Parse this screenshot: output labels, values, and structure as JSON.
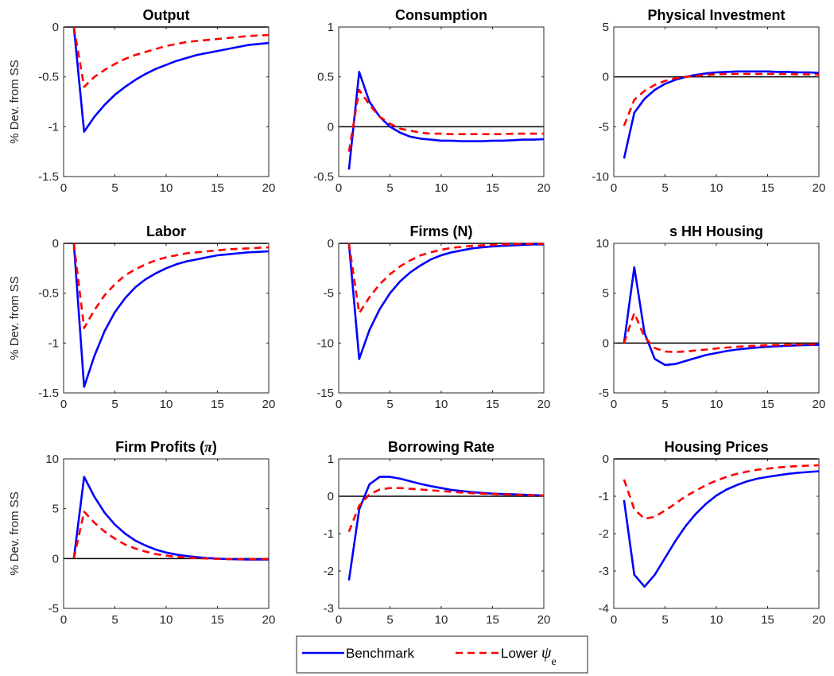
{
  "figure": {
    "ylabel": "% Dev. from SS",
    "legend": {
      "position": "bottom-center",
      "entries": [
        {
          "label": "Benchmark",
          "color": "#0000ff",
          "style": "solid"
        },
        {
          "label": "Lower",
          "symbol": "ψ",
          "subscript": "e",
          "color": "#ff0000",
          "style": "dashed"
        }
      ]
    },
    "colors": {
      "benchmark": "#0000ff",
      "lower": "#ff0000",
      "zero_line": "#000000",
      "axis": "#262626"
    }
  },
  "chart_data": [
    {
      "type": "line",
      "title": "Output",
      "xlim": [
        0,
        20
      ],
      "ylim": [
        -1.5,
        0
      ],
      "xticks": [
        0,
        5,
        10,
        15,
        20
      ],
      "yticks": [
        -1.5,
        -1,
        -0.5,
        0
      ],
      "ytick_labels": [
        "-1.5",
        "-1",
        "-0.5",
        "0"
      ],
      "x": [
        1,
        2,
        3,
        4,
        5,
        6,
        7,
        8,
        9,
        10,
        11,
        12,
        13,
        14,
        15,
        16,
        17,
        18,
        19,
        20
      ],
      "series": [
        {
          "name": "Benchmark",
          "values": [
            0,
            -1.05,
            -0.9,
            -0.78,
            -0.68,
            -0.6,
            -0.53,
            -0.47,
            -0.42,
            -0.38,
            -0.34,
            -0.31,
            -0.28,
            -0.26,
            -0.24,
            -0.22,
            -0.2,
            -0.18,
            -0.17,
            -0.16
          ]
        },
        {
          "name": "Lower ψe",
          "values": [
            0,
            -0.6,
            -0.5,
            -0.43,
            -0.37,
            -0.32,
            -0.28,
            -0.25,
            -0.22,
            -0.19,
            -0.17,
            -0.15,
            -0.14,
            -0.13,
            -0.12,
            -0.11,
            -0.1,
            -0.09,
            -0.085,
            -0.08
          ]
        }
      ]
    },
    {
      "type": "line",
      "title": "Consumption",
      "xlim": [
        0,
        20
      ],
      "ylim": [
        -0.5,
        1
      ],
      "xticks": [
        0,
        5,
        10,
        15,
        20
      ],
      "yticks": [
        -0.5,
        0,
        0.5,
        1
      ],
      "ytick_labels": [
        "-0.5",
        "0",
        "0.5",
        "1"
      ],
      "x": [
        1,
        2,
        3,
        4,
        5,
        6,
        7,
        8,
        9,
        10,
        11,
        12,
        13,
        14,
        15,
        16,
        17,
        18,
        19,
        20
      ],
      "series": [
        {
          "name": "Benchmark",
          "values": [
            -0.43,
            0.55,
            0.25,
            0.1,
            0.0,
            -0.06,
            -0.1,
            -0.12,
            -0.13,
            -0.14,
            -0.14,
            -0.145,
            -0.145,
            -0.145,
            -0.14,
            -0.14,
            -0.135,
            -0.13,
            -0.13,
            -0.125
          ]
        },
        {
          "name": "Lower ψe",
          "values": [
            -0.25,
            0.37,
            0.22,
            0.1,
            0.03,
            -0.02,
            -0.04,
            -0.06,
            -0.07,
            -0.07,
            -0.075,
            -0.075,
            -0.075,
            -0.075,
            -0.075,
            -0.075,
            -0.07,
            -0.07,
            -0.07,
            -0.07
          ]
        }
      ]
    },
    {
      "type": "line",
      "title": "Physical Investment",
      "xlim": [
        0,
        20
      ],
      "ylim": [
        -10,
        5
      ],
      "xticks": [
        0,
        5,
        10,
        15,
        20
      ],
      "yticks": [
        -10,
        -5,
        0,
        5
      ],
      "ytick_labels": [
        "-10",
        "-5",
        "0",
        "5"
      ],
      "x": [
        1,
        2,
        3,
        4,
        5,
        6,
        7,
        8,
        9,
        10,
        11,
        12,
        13,
        14,
        15,
        16,
        17,
        18,
        19,
        20
      ],
      "series": [
        {
          "name": "Benchmark",
          "values": [
            -8.2,
            -3.6,
            -2.2,
            -1.3,
            -0.7,
            -0.3,
            0.0,
            0.2,
            0.35,
            0.45,
            0.5,
            0.55,
            0.55,
            0.55,
            0.55,
            0.5,
            0.5,
            0.45,
            0.45,
            0.4
          ]
        },
        {
          "name": "Lower ψe",
          "values": [
            -4.9,
            -2.3,
            -1.4,
            -0.8,
            -0.4,
            -0.15,
            0.0,
            0.1,
            0.2,
            0.25,
            0.3,
            0.3,
            0.3,
            0.3,
            0.3,
            0.3,
            0.28,
            0.26,
            0.25,
            0.24
          ]
        }
      ]
    },
    {
      "type": "line",
      "title": "Labor",
      "xlim": [
        0,
        20
      ],
      "ylim": [
        -1.5,
        0
      ],
      "xticks": [
        0,
        5,
        10,
        15,
        20
      ],
      "yticks": [
        -1.5,
        -1,
        -0.5,
        0
      ],
      "ytick_labels": [
        "-1.5",
        "-1",
        "-0.5",
        "0"
      ],
      "x": [
        1,
        2,
        3,
        4,
        5,
        6,
        7,
        8,
        9,
        10,
        11,
        12,
        13,
        14,
        15,
        16,
        17,
        18,
        19,
        20
      ],
      "series": [
        {
          "name": "Benchmark",
          "values": [
            0,
            -1.44,
            -1.13,
            -0.88,
            -0.69,
            -0.55,
            -0.44,
            -0.36,
            -0.3,
            -0.25,
            -0.21,
            -0.18,
            -0.16,
            -0.14,
            -0.12,
            -0.11,
            -0.1,
            -0.09,
            -0.085,
            -0.08
          ]
        },
        {
          "name": "Lower ψe",
          "values": [
            0,
            -0.85,
            -0.67,
            -0.52,
            -0.41,
            -0.32,
            -0.26,
            -0.21,
            -0.17,
            -0.14,
            -0.12,
            -0.1,
            -0.09,
            -0.08,
            -0.07,
            -0.06,
            -0.055,
            -0.05,
            -0.045,
            -0.04
          ]
        }
      ]
    },
    {
      "type": "line",
      "title": "Firms (N)",
      "xlim": [
        0,
        20
      ],
      "ylim": [
        -15,
        0
      ],
      "xticks": [
        0,
        5,
        10,
        15,
        20
      ],
      "yticks": [
        -15,
        -10,
        -5,
        0
      ],
      "ytick_labels": [
        "-15",
        "-10",
        "-5",
        "0"
      ],
      "x": [
        1,
        2,
        3,
        4,
        5,
        6,
        7,
        8,
        9,
        10,
        11,
        12,
        13,
        14,
        15,
        16,
        17,
        18,
        19,
        20
      ],
      "series": [
        {
          "name": "Benchmark",
          "values": [
            0,
            -11.6,
            -8.7,
            -6.6,
            -5.0,
            -3.8,
            -2.9,
            -2.2,
            -1.6,
            -1.2,
            -0.9,
            -0.7,
            -0.5,
            -0.4,
            -0.3,
            -0.25,
            -0.2,
            -0.15,
            -0.1,
            -0.1
          ]
        },
        {
          "name": "Lower ψe",
          "values": [
            0,
            -7.0,
            -5.4,
            -4.1,
            -3.1,
            -2.3,
            -1.7,
            -1.2,
            -0.9,
            -0.65,
            -0.45,
            -0.35,
            -0.25,
            -0.2,
            -0.15,
            -0.1,
            -0.08,
            -0.06,
            -0.05,
            -0.04
          ]
        }
      ]
    },
    {
      "type": "line",
      "title": "s HH Housing",
      "xlim": [
        0,
        20
      ],
      "ylim": [
        -5,
        10
      ],
      "xticks": [
        0,
        5,
        10,
        15,
        20
      ],
      "yticks": [
        -5,
        0,
        5,
        10
      ],
      "ytick_labels": [
        "-5",
        "0",
        "5",
        "10"
      ],
      "x": [
        1,
        2,
        3,
        4,
        5,
        6,
        7,
        8,
        9,
        10,
        11,
        12,
        13,
        14,
        15,
        16,
        17,
        18,
        19,
        20
      ],
      "series": [
        {
          "name": "Benchmark",
          "values": [
            0,
            7.6,
            1.0,
            -1.6,
            -2.2,
            -2.1,
            -1.8,
            -1.5,
            -1.2,
            -1.0,
            -0.8,
            -0.65,
            -0.55,
            -0.45,
            -0.38,
            -0.32,
            -0.27,
            -0.23,
            -0.2,
            -0.18
          ]
        },
        {
          "name": "Lower ψe",
          "values": [
            0,
            3.0,
            0.6,
            -0.5,
            -0.85,
            -0.9,
            -0.85,
            -0.75,
            -0.65,
            -0.55,
            -0.45,
            -0.38,
            -0.32,
            -0.27,
            -0.23,
            -0.2,
            -0.17,
            -0.15,
            -0.13,
            -0.12
          ]
        }
      ]
    },
    {
      "type": "line",
      "title": "Firm Profits (π)",
      "xlim": [
        0,
        20
      ],
      "ylim": [
        -5,
        10
      ],
      "xticks": [
        0,
        5,
        10,
        15,
        20
      ],
      "yticks": [
        -5,
        0,
        5,
        10
      ],
      "ytick_labels": [
        "-5",
        "0",
        "5",
        "10"
      ],
      "x": [
        1,
        2,
        3,
        4,
        5,
        6,
        7,
        8,
        9,
        10,
        11,
        12,
        13,
        14,
        15,
        16,
        17,
        18,
        19,
        20
      ],
      "series": [
        {
          "name": "Benchmark",
          "values": [
            0,
            8.2,
            6.2,
            4.6,
            3.4,
            2.5,
            1.8,
            1.3,
            0.9,
            0.6,
            0.4,
            0.25,
            0.15,
            0.05,
            0.0,
            -0.05,
            -0.08,
            -0.1,
            -0.1,
            -0.1
          ]
        },
        {
          "name": "Lower ψe",
          "values": [
            0,
            4.7,
            3.6,
            2.7,
            2.0,
            1.4,
            1.0,
            0.7,
            0.45,
            0.3,
            0.18,
            0.1,
            0.04,
            0.0,
            -0.03,
            -0.05,
            -0.06,
            -0.06,
            -0.06,
            -0.06
          ]
        }
      ]
    },
    {
      "type": "line",
      "title": "Borrowing Rate",
      "xlim": [
        0,
        20
      ],
      "ylim": [
        -3,
        1
      ],
      "xticks": [
        0,
        5,
        10,
        15,
        20
      ],
      "yticks": [
        -3,
        -2,
        -1,
        0,
        1
      ],
      "ytick_labels": [
        "-3",
        "-2",
        "-1",
        "0",
        "1"
      ],
      "x": [
        1,
        2,
        3,
        4,
        5,
        6,
        7,
        8,
        9,
        10,
        11,
        12,
        13,
        14,
        15,
        16,
        17,
        18,
        19,
        20
      ],
      "series": [
        {
          "name": "Benchmark",
          "values": [
            -2.25,
            -0.35,
            0.32,
            0.52,
            0.52,
            0.47,
            0.4,
            0.33,
            0.27,
            0.22,
            0.17,
            0.14,
            0.11,
            0.09,
            0.07,
            0.06,
            0.05,
            0.04,
            0.03,
            0.02
          ]
        },
        {
          "name": "Lower ψe",
          "values": [
            -0.95,
            -0.25,
            0.05,
            0.18,
            0.22,
            0.22,
            0.2,
            0.18,
            0.16,
            0.14,
            0.12,
            0.1,
            0.08,
            0.07,
            0.06,
            0.05,
            0.04,
            0.03,
            0.025,
            0.02
          ]
        }
      ]
    },
    {
      "type": "line",
      "title": "Housing Prices",
      "xlim": [
        0,
        20
      ],
      "ylim": [
        -4,
        0
      ],
      "xticks": [
        0,
        5,
        10,
        15,
        20
      ],
      "yticks": [
        -4,
        -3,
        -2,
        -1,
        0
      ],
      "ytick_labels": [
        "-4",
        "-3",
        "-2",
        "-1",
        "0"
      ],
      "x": [
        1,
        2,
        3,
        4,
        5,
        6,
        7,
        8,
        9,
        10,
        11,
        12,
        13,
        14,
        15,
        16,
        17,
        18,
        19,
        20
      ],
      "series": [
        {
          "name": "Benchmark",
          "values": [
            -1.1,
            -3.1,
            -3.42,
            -3.1,
            -2.65,
            -2.2,
            -1.8,
            -1.47,
            -1.2,
            -0.98,
            -0.82,
            -0.7,
            -0.6,
            -0.53,
            -0.48,
            -0.44,
            -0.4,
            -0.37,
            -0.35,
            -0.33
          ]
        },
        {
          "name": "Lower ψe",
          "values": [
            -0.55,
            -1.35,
            -1.6,
            -1.55,
            -1.38,
            -1.2,
            -1.0,
            -0.85,
            -0.7,
            -0.58,
            -0.48,
            -0.4,
            -0.34,
            -0.29,
            -0.26,
            -0.23,
            -0.21,
            -0.19,
            -0.18,
            -0.17
          ]
        }
      ]
    }
  ]
}
